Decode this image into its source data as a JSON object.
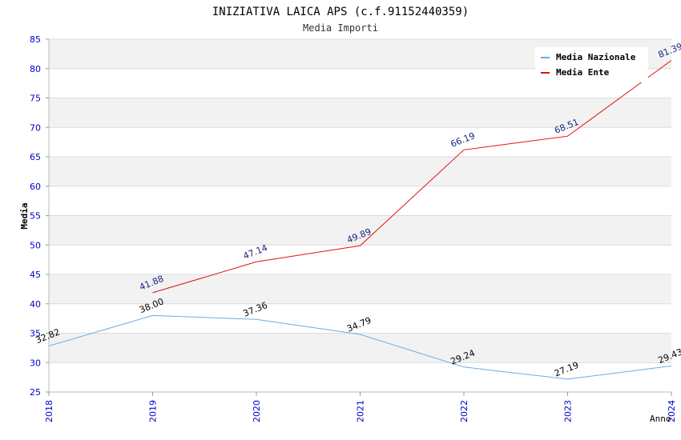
{
  "chart_data": {
    "type": "line",
    "title": "INIZIATIVA LAICA APS (c.f.91152440359)",
    "subtitle": "Media Importi",
    "xlabel": "Anno",
    "ylabel": "Media",
    "ylim": [
      25,
      85
    ],
    "yticks": [
      "25",
      "30",
      "35",
      "40",
      "45",
      "50",
      "55",
      "60",
      "65",
      "70",
      "75",
      "80",
      "85"
    ],
    "categories": [
      "2018",
      "2019",
      "2020",
      "2021",
      "2022",
      "2023",
      "2024"
    ],
    "grid": true,
    "legend_position": "top-right",
    "series": [
      {
        "name": "Media Nazionale",
        "color": "#6aaee8",
        "label_color": "#000000",
        "values": [
          32.82,
          38.0,
          37.36,
          34.79,
          29.24,
          27.19,
          29.43
        ],
        "labels": [
          "32.82",
          "38.00",
          "37.36",
          "34.79",
          "29.24",
          "27.19",
          "29.43"
        ]
      },
      {
        "name": "Media Ente",
        "color": "#e01010",
        "label_color": "#1a237e",
        "values": [
          null,
          41.88,
          47.14,
          49.89,
          66.19,
          68.51,
          81.39
        ],
        "labels": [
          null,
          "41.88",
          "47.14",
          "49.89",
          "66.19",
          "68.51",
          "81.39"
        ]
      }
    ],
    "colors": {
      "band": "#f2f2f2",
      "grid": "#dcdcdc",
      "tick_labels": "#0000cc",
      "title": "#000000",
      "subtitle": "#333333"
    }
  }
}
